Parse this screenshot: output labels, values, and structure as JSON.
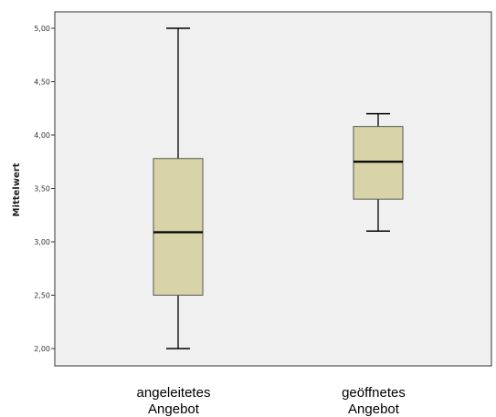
{
  "chart_data": {
    "type": "boxplot",
    "ylabel": "Mittelwert",
    "ylim": [
      1.9,
      5.15
    ],
    "yticks": [
      2.0,
      2.5,
      3.0,
      3.5,
      4.0,
      4.5,
      5.0
    ],
    "ytick_labels": [
      "2,00",
      "2,50",
      "3,00",
      "3,50",
      "4,00",
      "4,50",
      "5,00"
    ],
    "categories": [
      {
        "line1": "angeleitetes",
        "line2": "Angebot"
      },
      {
        "line1": "geöffnetes",
        "line2": "Angebot"
      }
    ],
    "boxes": [
      {
        "min": 2.0,
        "q1": 2.5,
        "median": 3.09,
        "q3": 3.78,
        "max": 5.0
      },
      {
        "min": 3.1,
        "q1": 3.4,
        "median": 3.75,
        "q3": 4.08,
        "max": 4.2
      }
    ],
    "colors": {
      "plot_background": "#f0f0f0",
      "box_fill": "#d9d4a8",
      "box_stroke": "#555555",
      "median": "#000000"
    }
  }
}
